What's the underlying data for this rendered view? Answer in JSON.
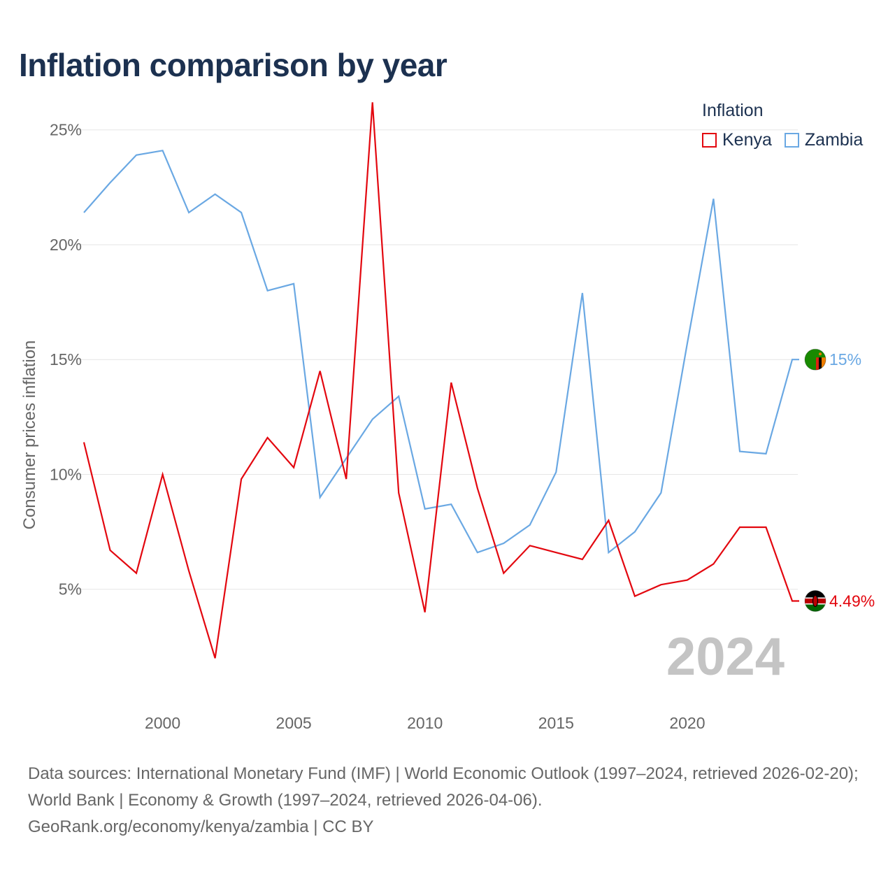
{
  "title": "Inflation comparison by year",
  "legend": {
    "title": "Inflation",
    "items": [
      {
        "label": "Kenya",
        "color": "#e3070f"
      },
      {
        "label": "Zambia",
        "color": "#6aa8e3"
      }
    ]
  },
  "chart_data": {
    "type": "line",
    "title": "Inflation comparison by year",
    "xlabel": "",
    "ylabel": "Consumer prices inflation",
    "xlim": [
      1997,
      2024
    ],
    "ylim": [
      0,
      27
    ],
    "y_ticks": [
      5,
      10,
      15,
      20,
      25
    ],
    "y_tick_labels": [
      "5%",
      "10%",
      "15%",
      "20%",
      "25%"
    ],
    "x_ticks": [
      2000,
      2005,
      2010,
      2015,
      2020
    ],
    "x_tick_labels": [
      "2000",
      "2005",
      "2010",
      "2015",
      "2020"
    ],
    "grid": true,
    "year_watermark": "2024",
    "x": [
      1997,
      1998,
      1999,
      2000,
      2001,
      2002,
      2003,
      2004,
      2005,
      2006,
      2007,
      2008,
      2009,
      2010,
      2011,
      2012,
      2013,
      2014,
      2015,
      2016,
      2017,
      2018,
      2019,
      2020,
      2021,
      2022,
      2023,
      2024
    ],
    "series": [
      {
        "name": "Kenya",
        "color": "#e3070f",
        "end_label": "4.49%",
        "values": [
          11.4,
          6.7,
          5.7,
          10.0,
          5.8,
          2.0,
          9.8,
          11.6,
          10.3,
          14.5,
          9.8,
          26.2,
          9.2,
          4.0,
          14.0,
          9.4,
          5.7,
          6.9,
          6.6,
          6.3,
          8.0,
          4.7,
          5.2,
          5.4,
          6.1,
          7.7,
          7.7,
          4.49
        ]
      },
      {
        "name": "Zambia",
        "color": "#6aa8e3",
        "end_label": "15%",
        "values": [
          21.4,
          22.7,
          23.9,
          24.1,
          21.4,
          22.2,
          21.4,
          18.0,
          18.3,
          9.0,
          10.7,
          12.4,
          13.4,
          8.5,
          8.7,
          6.6,
          7.0,
          7.8,
          10.1,
          17.9,
          6.6,
          7.5,
          9.2,
          15.7,
          22.0,
          11.0,
          10.9,
          15.0
        ]
      }
    ]
  },
  "footer": {
    "sources": "Data sources: International Monetary Fund (IMF) | World Economic Outlook (1997–2024, retrieved 2026-02-20); World Bank | Economy & Growth (1997–2024, retrieved 2026-04-06).",
    "credit": "GeoRank.org/economy/kenya/zambia | CC BY"
  }
}
